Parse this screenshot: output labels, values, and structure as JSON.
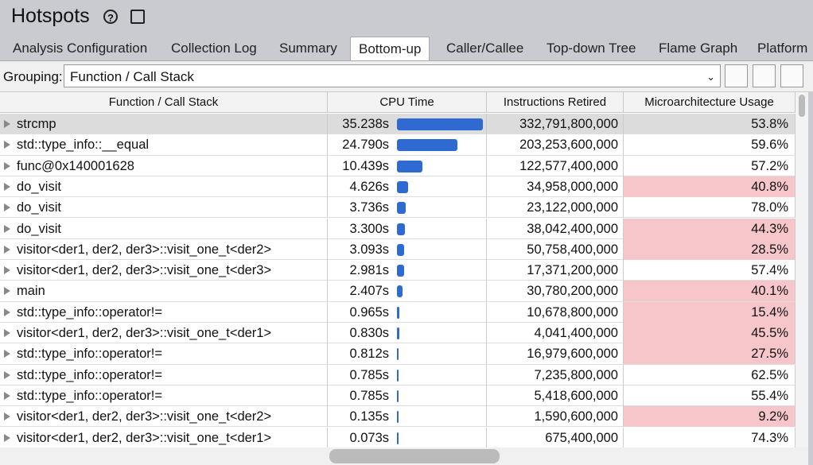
{
  "header": {
    "title": "Hotspots"
  },
  "tabs": [
    "Analysis Configuration",
    "Collection Log",
    "Summary",
    "Bottom-up",
    "Caller/Callee",
    "Top-down Tree",
    "Flame Graph",
    "Platform"
  ],
  "selected_tab": 3,
  "grouping": {
    "label": "Grouping:",
    "value": "Function / Call Stack"
  },
  "table": {
    "columns": [
      "Function / Call Stack",
      "CPU Time",
      "Instructions Retired",
      "Microarchitecture Usage"
    ],
    "selected_row": 0,
    "rows": [
      {
        "name": "strcmp",
        "cpu_time": {
          "value": 35.238,
          "label": "35.238s"
        },
        "instructions": "332,791,800,000",
        "micro": "53.8%",
        "highlight": false
      },
      {
        "name": "std::type_info::__equal",
        "cpu_time": {
          "value": 24.79,
          "label": "24.790s"
        },
        "instructions": "203,253,600,000",
        "micro": "59.6%",
        "highlight": false
      },
      {
        "name": "func@0x140001628",
        "cpu_time": {
          "value": 10.439,
          "label": "10.439s"
        },
        "instructions": "122,577,400,000",
        "micro": "57.2%",
        "highlight": false
      },
      {
        "name": "do_visit",
        "cpu_time": {
          "value": 4.626,
          "label": "4.626s"
        },
        "instructions": "34,958,000,000",
        "micro": "40.8%",
        "highlight": true
      },
      {
        "name": "do_visit",
        "cpu_time": {
          "value": 3.736,
          "label": "3.736s"
        },
        "instructions": "23,122,000,000",
        "micro": "78.0%",
        "highlight": false
      },
      {
        "name": "do_visit",
        "cpu_time": {
          "value": 3.3,
          "label": "3.300s"
        },
        "instructions": "38,042,400,000",
        "micro": "44.3%",
        "highlight": true
      },
      {
        "name": "visitor<der1, der2, der3>::visit_one_t<der2>",
        "cpu_time": {
          "value": 3.093,
          "label": "3.093s"
        },
        "instructions": "50,758,400,000",
        "micro": "28.5%",
        "highlight": true
      },
      {
        "name": "visitor<der1, der2, der3>::visit_one_t<der3>",
        "cpu_time": {
          "value": 2.981,
          "label": "2.981s"
        },
        "instructions": "17,371,200,000",
        "micro": "57.4%",
        "highlight": false
      },
      {
        "name": "main",
        "cpu_time": {
          "value": 2.407,
          "label": "2.407s"
        },
        "instructions": "30,780,200,000",
        "micro": "40.1%",
        "highlight": true
      },
      {
        "name": "std::type_info::operator!=",
        "cpu_time": {
          "value": 0.965,
          "label": "0.965s"
        },
        "instructions": "10,678,800,000",
        "micro": "15.4%",
        "highlight": true
      },
      {
        "name": "visitor<der1, der2, der3>::visit_one_t<der1>",
        "cpu_time": {
          "value": 0.83,
          "label": "0.830s"
        },
        "instructions": "4,041,400,000",
        "micro": "45.5%",
        "highlight": true
      },
      {
        "name": "std::type_info::operator!=",
        "cpu_time": {
          "value": 0.812,
          "label": "0.812s"
        },
        "instructions": "16,979,600,000",
        "micro": "27.5%",
        "highlight": true
      },
      {
        "name": "std::type_info::operator!=",
        "cpu_time": {
          "value": 0.785,
          "label": "0.785s"
        },
        "instructions": "7,235,800,000",
        "micro": "62.5%",
        "highlight": false
      },
      {
        "name": "std::type_info::operator!=",
        "cpu_time": {
          "value": 0.785,
          "label": "0.785s"
        },
        "instructions": "5,418,600,000",
        "micro": "55.4%",
        "highlight": false
      },
      {
        "name": "visitor<der1, der2, der3>::visit_one_t<der2>",
        "cpu_time": {
          "value": 0.135,
          "label": "0.135s"
        },
        "instructions": "1,590,600,000",
        "micro": "9.2%",
        "highlight": true
      },
      {
        "name": "visitor<der1, der2, der3>::visit_one_t<der1>",
        "cpu_time": {
          "value": 0.073,
          "label": "0.073s"
        },
        "instructions": "675,400,000",
        "micro": "74.3%",
        "highlight": false
      }
    ]
  }
}
